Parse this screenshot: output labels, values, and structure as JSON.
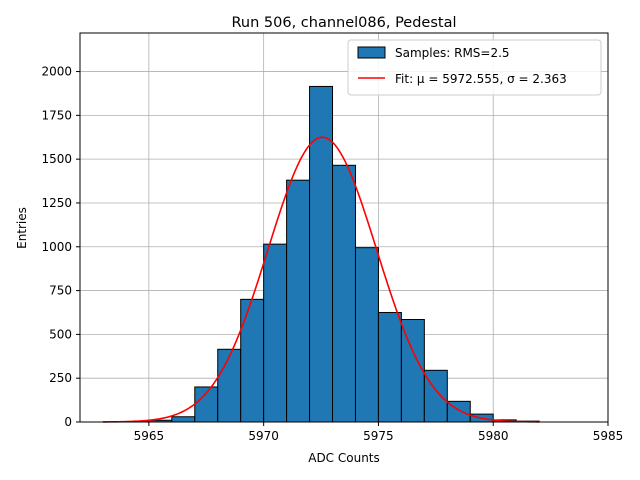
{
  "chart_data": {
    "type": "bar",
    "title": "Run 506, channel086, Pedestal",
    "xlabel": "ADC Counts",
    "ylabel": "Entries",
    "xlim": [
      5962.0,
      5985.0
    ],
    "ylim": [
      0,
      2220
    ],
    "xticks": [
      5965,
      5970,
      5975,
      5980,
      5985
    ],
    "yticks": [
      0,
      250,
      500,
      750,
      1000,
      1250,
      1500,
      1750,
      2000
    ],
    "grid": true,
    "legend_position": "top-right",
    "histogram": {
      "name": "Samples: RMS=2.5",
      "color": "#1f77b4",
      "edgecolor": "#000000",
      "bin_edges": [
        5963,
        5964,
        5965,
        5966,
        5967,
        5968,
        5969,
        5970,
        5971,
        5972,
        5973,
        5974,
        5975,
        5976,
        5977,
        5978,
        5979,
        5980,
        5981,
        5982
      ],
      "counts": [
        1,
        3,
        10,
        30,
        200,
        415,
        700,
        1015,
        1380,
        1915,
        1465,
        995,
        625,
        585,
        295,
        118,
        45,
        12,
        5
      ]
    },
    "fit": {
      "name": "Fit: μ = 5972.555, σ = 2.363",
      "color": "#ff0000",
      "mu": 5972.555,
      "sigma": 2.363,
      "amplitude": 1625,
      "x_range": [
        5963,
        5982
      ]
    }
  }
}
